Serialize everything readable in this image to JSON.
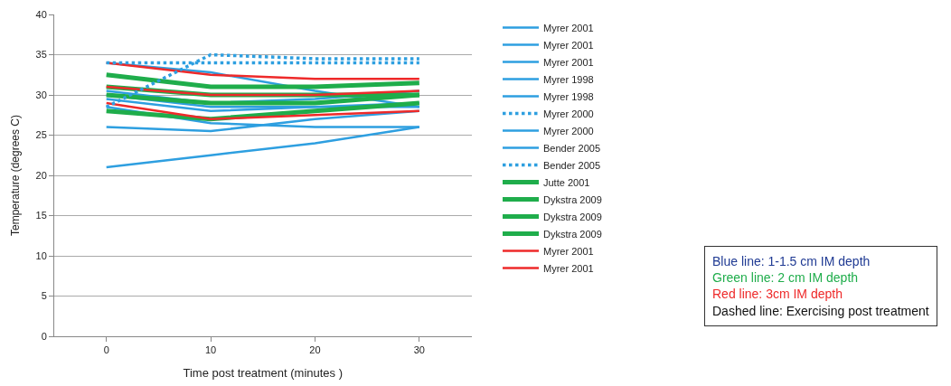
{
  "chart_data": {
    "type": "line",
    "xlabel": "Time post treatment (minutes )",
    "ylabel": "Temperature (degrees C)",
    "categories": [
      "0",
      "10",
      "20",
      "30"
    ],
    "ylim": [
      0,
      40
    ],
    "yticks": [
      0,
      5,
      10,
      15,
      20,
      25,
      30,
      35,
      40
    ],
    "grid": "y",
    "legend": "right",
    "marker": "none",
    "series": [
      {
        "name": "Myrer 2001",
        "color": "#2e9fe0",
        "values": [
          30.5,
          29,
          29.5,
          30.5
        ]
      },
      {
        "name": "Myrer 2001",
        "color": "#2e9fe0",
        "values": [
          29.5,
          28,
          28.5,
          29
        ]
      },
      {
        "name": "Myrer 2001",
        "color": "#2e9fe0",
        "values": [
          34,
          32.8,
          30.5,
          28.5
        ]
      },
      {
        "name": "Myrer 1998",
        "color": "#2e9fe0",
        "values": [
          28.5,
          26.5,
          26,
          26
        ]
      },
      {
        "name": "Myrer 1998",
        "color": "#2e9fe0",
        "values": [
          26,
          25.5,
          27,
          28
        ]
      },
      {
        "name": "Myrer 2000",
        "color": "#2e9fe0",
        "line_style": "dotted",
        "values": [
          34,
          34,
          34,
          34
        ]
      },
      {
        "name": "Myrer 2000",
        "color": "#2e9fe0",
        "values": [
          21,
          22.5,
          24,
          26
        ]
      },
      {
        "name": "Bender 2005",
        "color": "#2e9fe0",
        "values": [
          30,
          28.5,
          28.5,
          28.5
        ]
      },
      {
        "name": "Bender 2005",
        "color": "#2e9fe0",
        "line_style": "dotted",
        "values": [
          28.5,
          35,
          34.5,
          34.5
        ]
      },
      {
        "name": "Jutte 2001",
        "color": "#1fad4b",
        "values": [
          32.5,
          31,
          31,
          31.5
        ]
      },
      {
        "name": "Dykstra 2009",
        "color": "#1fad4b",
        "values": [
          30,
          29,
          29,
          30
        ]
      },
      {
        "name": "Dykstra 2009",
        "color": "#1fad4b",
        "values": [
          28,
          27,
          28,
          29
        ]
      },
      {
        "name": "Dykstra 2009",
        "color": "#1fad4b",
        "values": [
          31,
          30,
          30,
          30
        ]
      },
      {
        "name": "Myrer 2001",
        "color": "#ee2a2a",
        "values": [
          34,
          32.5,
          32,
          32
        ]
      },
      {
        "name": "Myrer 2001",
        "color": "#ee2a2a",
        "values": [
          31,
          30,
          30,
          30.5
        ]
      },
      {
        "color": "#ee2a2a",
        "values": [
          29,
          27,
          27.5,
          28
        ]
      }
    ],
    "annotations": [
      "Blue line: 1-1.5 cm IM depth",
      "Green line: 2 cm IM depth",
      "Red line: 3cm IM depth",
      "Dashed line: Exercising post treatment"
    ]
  }
}
